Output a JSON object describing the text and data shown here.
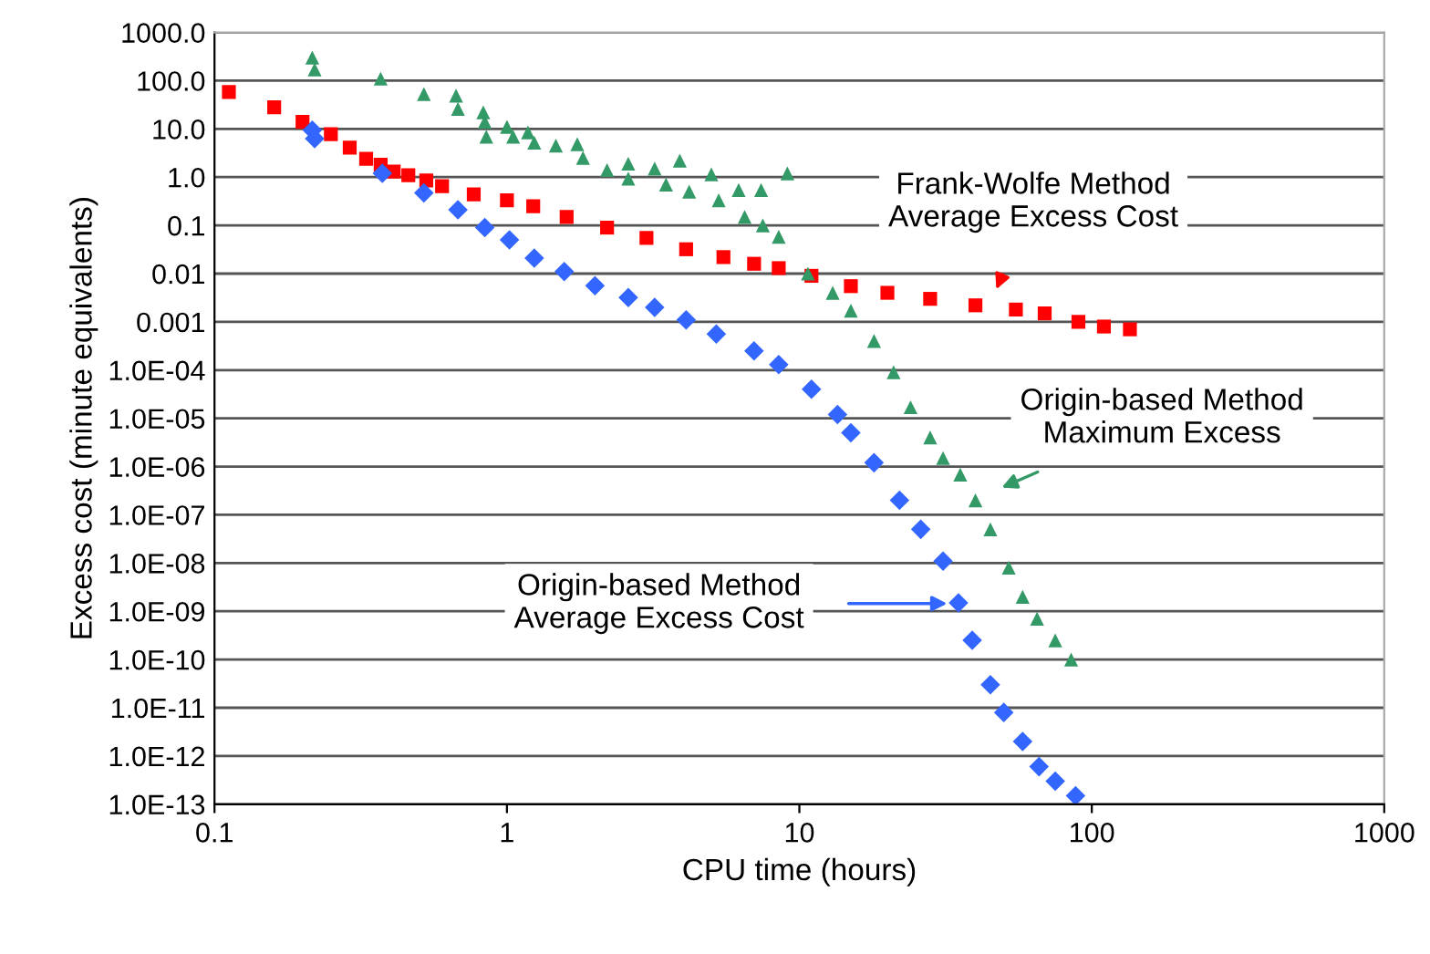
{
  "chart_data": {
    "type": "scatter",
    "xlabel": "CPU time (hours)",
    "ylabel": "Excess cost (minute equivalents)",
    "log": "xy",
    "grid": "y",
    "legend": false,
    "xlim": [
      0.1,
      1000
    ],
    "xticks": [
      0.1,
      1,
      10,
      100,
      1000
    ],
    "ylim": [
      1e-13,
      1000
    ],
    "yticks": [
      {
        "value": 1000,
        "label": "1000.0"
      },
      {
        "value": 100,
        "label": "100.0"
      },
      {
        "value": 10,
        "label": "10.0"
      },
      {
        "value": 1,
        "label": "1.0"
      },
      0.1,
      0.01,
      0.001,
      {
        "value": 0.0001,
        "label": "1.0E-04"
      },
      {
        "value": 1e-05,
        "label": "1.0E-05"
      },
      {
        "value": 1e-06,
        "label": "1.0E-06"
      },
      {
        "value": 1e-07,
        "label": "1.0E-07"
      },
      {
        "value": 1e-08,
        "label": "1.0E-08"
      },
      {
        "value": 1e-09,
        "label": "1.0E-09"
      },
      {
        "value": 1e-10,
        "label": "1.0E-10"
      },
      {
        "value": 1e-11,
        "label": "1.0E-11"
      },
      {
        "value": 1e-12,
        "label": "1.0E-12"
      },
      {
        "value": 1e-13,
        "label": "1.0E-13"
      }
    ],
    "series": [
      {
        "color": "#ff0000",
        "marker": "square",
        "x": [
          0.112,
          0.16,
          0.2,
          0.25,
          0.29,
          0.33,
          0.37,
          0.41,
          0.46,
          0.53,
          0.6,
          0.77,
          1.0,
          1.23,
          1.6,
          2.2,
          3.0,
          4.1,
          5.5,
          7,
          8.5,
          11,
          15,
          20,
          28,
          40,
          55,
          69,
          90,
          110,
          135
        ],
        "values": [
          58,
          28,
          14,
          7.8,
          4.1,
          2.4,
          1.8,
          1.3,
          1.1,
          0.85,
          0.65,
          0.44,
          0.33,
          0.25,
          0.15,
          0.09,
          0.055,
          0.032,
          0.022,
          0.016,
          0.013,
          0.009,
          0.0055,
          0.004,
          0.003,
          0.0022,
          0.0018,
          0.0015,
          0.001,
          0.0008,
          0.0007
        ]
      },
      {
        "color": "#339966",
        "marker": "triangle",
        "x": [
          0.216,
          0.22,
          0.37,
          0.52,
          0.67,
          0.68,
          0.83,
          0.84,
          0.85,
          1.0,
          1.05,
          1.18,
          1.24,
          1.47,
          1.74,
          1.82,
          2.2,
          2.6,
          3.2,
          3.9,
          5.0,
          6.2,
          7.4,
          9.1,
          2.6,
          3.5,
          4.2,
          5.3,
          6.5,
          7.5,
          8.5,
          10.7,
          13,
          15,
          18,
          21,
          24,
          28,
          31,
          35.5,
          40,
          45,
          52,
          58,
          65,
          75,
          85
        ],
        "values": [
          300,
          170,
          110,
          53,
          49,
          26,
          22,
          14,
          6.9,
          11,
          6.9,
          8.5,
          5.2,
          4.5,
          4.8,
          2.5,
          1.4,
          1.9,
          1.5,
          2.2,
          1.15,
          0.54,
          0.54,
          1.2,
          0.93,
          0.7,
          0.5,
          0.33,
          0.15,
          0.1,
          0.058,
          0.01,
          0.004,
          0.0017,
          0.0004,
          9e-05,
          1.7e-05,
          4e-06,
          1.5e-06,
          6.8e-07,
          2e-07,
          5e-08,
          8e-09,
          2e-09,
          7e-10,
          2.5e-10,
          1e-10
        ]
      },
      {
        "color": "#3366ff",
        "marker": "diamond",
        "x": [
          0.216,
          0.22,
          0.375,
          0.52,
          0.68,
          0.84,
          1.02,
          1.24,
          1.57,
          2.0,
          2.6,
          3.2,
          4.1,
          5.2,
          7,
          8.5,
          11,
          13.5,
          15,
          18,
          22,
          26,
          31,
          35,
          39,
          45,
          50,
          58,
          66,
          75,
          88
        ],
        "values": [
          9.4,
          6.3,
          1.2,
          0.47,
          0.21,
          0.09,
          0.05,
          0.021,
          0.011,
          0.0056,
          0.0032,
          0.002,
          0.0011,
          0.00056,
          0.00025,
          0.00013,
          4e-05,
          1.2e-05,
          5e-06,
          1.2e-06,
          2e-07,
          5e-08,
          1.1e-08,
          1.5e-09,
          2.5e-10,
          3e-11,
          8e-12,
          2e-12,
          6e-13,
          3e-13,
          1.5e-13
        ]
      }
    ],
    "annotations": [
      "Frank-Wolfe Method\nAverage Excess Cost",
      "Origin-based Method\nMaximum Excess",
      "Origin-based Method\nAverage Excess Cost"
    ]
  }
}
